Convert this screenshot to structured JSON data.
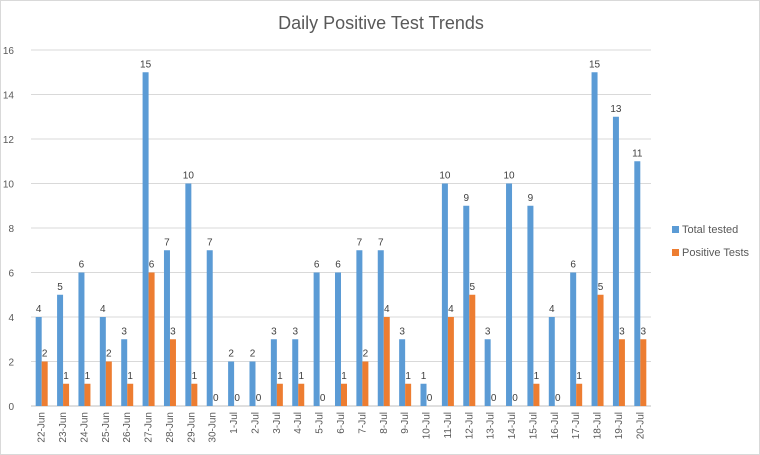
{
  "chart_data": {
    "type": "bar",
    "title": "Daily Positive Test Trends",
    "xlabel": "",
    "ylabel": "",
    "ylim": [
      0,
      16
    ],
    "yticks": [
      0,
      2,
      4,
      6,
      8,
      10,
      12,
      14,
      16
    ],
    "grid": true,
    "legend_position": "right",
    "categories": [
      "22-Jun",
      "23-Jun",
      "24-Jun",
      "25-Jun",
      "26-Jun",
      "27-Jun",
      "28-Jun",
      "29-Jun",
      "30-Jun",
      "1-Jul",
      "2-Jul",
      "3-Jul",
      "4-Jul",
      "5-Jul",
      "6-Jul",
      "7-Jul",
      "8-Jul",
      "9-Jul",
      "10-Jul",
      "11-Jul",
      "12-Jul",
      "13-Jul",
      "14-Jul",
      "15-Jul",
      "16-Jul",
      "17-Jul",
      "18-Jul",
      "19-Jul",
      "20-Jul"
    ],
    "series": [
      {
        "name": "Total tested",
        "color": "#5b9bd5",
        "values": [
          4,
          5,
          6,
          4,
          3,
          15,
          7,
          10,
          7,
          2,
          2,
          3,
          3,
          6,
          6,
          7,
          7,
          3,
          1,
          10,
          9,
          3,
          10,
          9,
          4,
          6,
          15,
          13,
          11
        ]
      },
      {
        "name": "Positive Tests",
        "color": "#ed7d31",
        "values": [
          2,
          1,
          1,
          2,
          1,
          6,
          3,
          1,
          0,
          0,
          0,
          1,
          1,
          0,
          1,
          2,
          4,
          1,
          0,
          4,
          5,
          0,
          0,
          1,
          0,
          1,
          5,
          3,
          3
        ]
      }
    ]
  }
}
